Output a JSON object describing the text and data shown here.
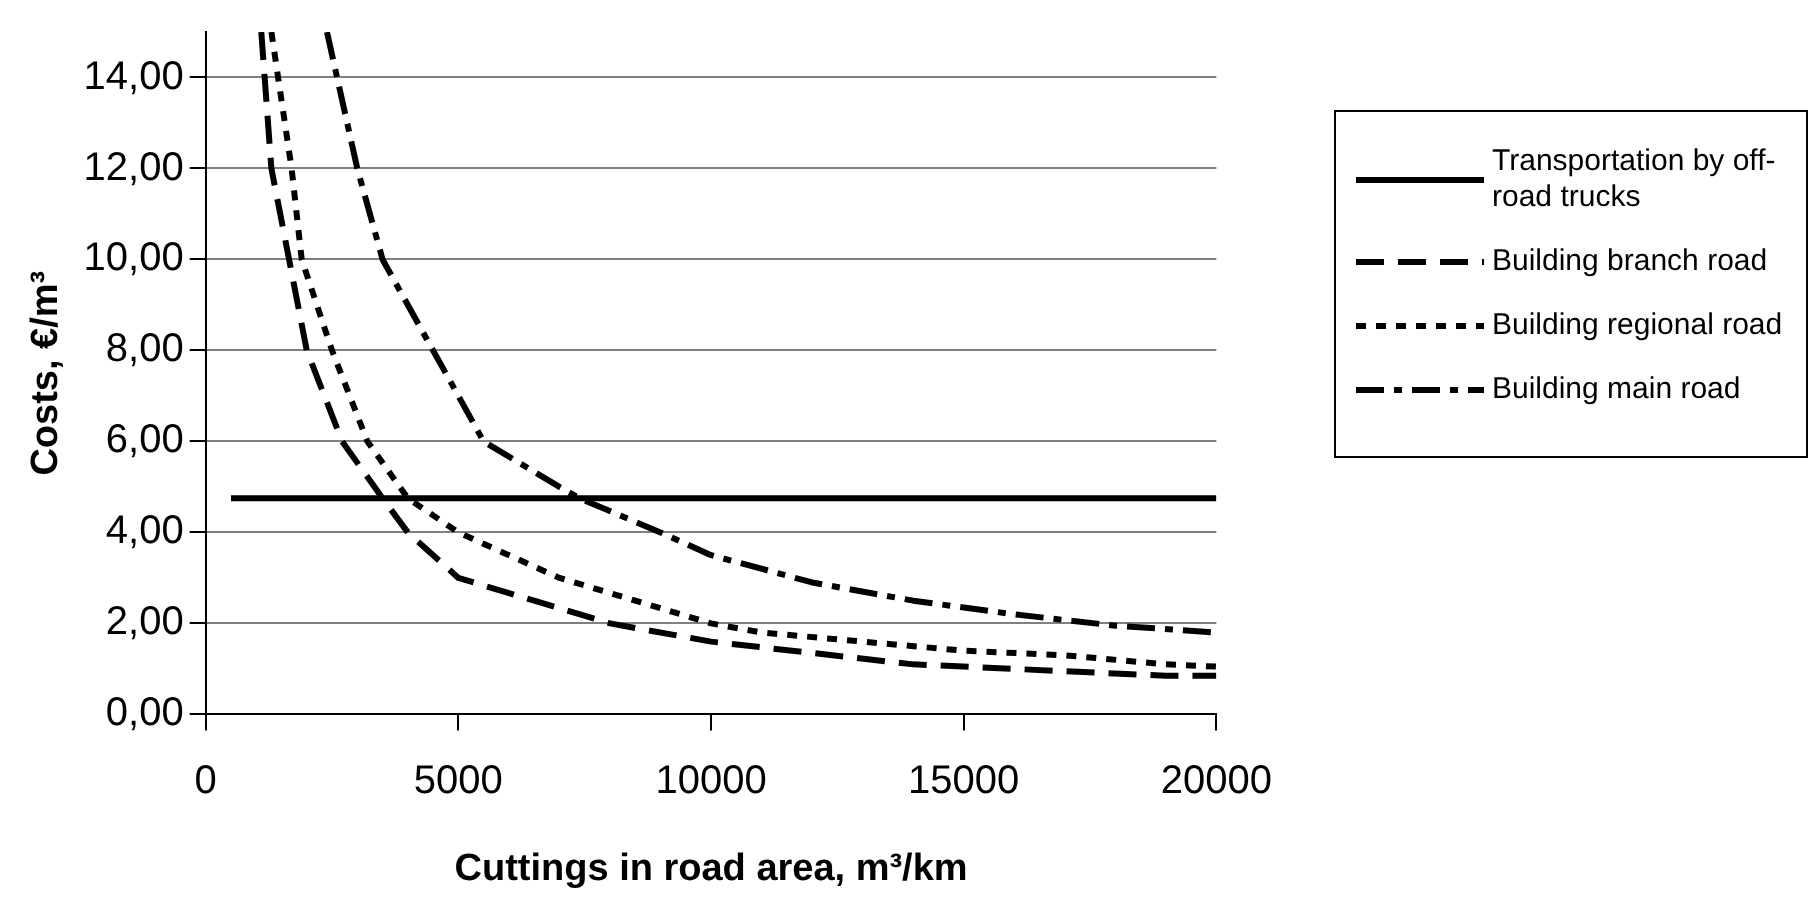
{
  "chart_data": {
    "type": "line",
    "xlabel": "Cuttings in road area, m³/km",
    "ylabel": "Costs, €/m³",
    "xlim": [
      0,
      20000
    ],
    "xticks": [
      0,
      5000,
      10000,
      15000,
      20000
    ],
    "ylim": [
      0,
      15
    ],
    "yticks": [
      {
        "value": 0,
        "label": "0,00"
      },
      {
        "value": 2,
        "label": "2,00"
      },
      {
        "value": 4,
        "label": "4,00"
      },
      {
        "value": 6,
        "label": "6,00"
      },
      {
        "value": 8,
        "label": "8,00"
      },
      {
        "value": 10,
        "label": "10,00"
      },
      {
        "value": 12,
        "label": "12,00"
      },
      {
        "value": 14,
        "label": "14,00"
      }
    ],
    "grid": "y",
    "legend": "right",
    "marker": "none",
    "series": [
      {
        "name": "Transportation by off-road trucks",
        "color": "#000000",
        "line_style": "solid",
        "x": [
          500,
          20000
        ],
        "values": [
          4.75,
          4.75
        ]
      },
      {
        "name": "Building branch road",
        "color": "#000000",
        "line_style": "dashed",
        "x": [
          1100,
          1300,
          1650,
          2000,
          2700,
          3500,
          4000,
          5000,
          6500,
          8000,
          10000,
          12000,
          14000,
          16000,
          17000,
          19000,
          20000
        ],
        "values": [
          15,
          12,
          10,
          8,
          6,
          4.75,
          4,
          3,
          2.5,
          2,
          1.6,
          1.35,
          1.1,
          1,
          0.95,
          0.85,
          0.85
        ]
      },
      {
        "name": "Building regional road",
        "color": "#000000",
        "line_style": "dotted",
        "x": [
          1300,
          1700,
          1900,
          2500,
          3200,
          4000,
          5000,
          7000,
          8500,
          10000,
          11000,
          13000,
          15000,
          17000,
          19000,
          20000
        ],
        "values": [
          15,
          12,
          10,
          8,
          6,
          4.75,
          4,
          3,
          2.5,
          2,
          1.8,
          1.6,
          1.4,
          1.3,
          1.1,
          1.05
        ]
      },
      {
        "name": "Building main road",
        "color": "#000000",
        "line_style": "dashdot",
        "x": [
          2400,
          3000,
          3500,
          4500,
          5500,
          7000,
          7400,
          9000,
          10000,
          12000,
          14000,
          16000,
          18000,
          20000
        ],
        "values": [
          15,
          12,
          10,
          8,
          6,
          5,
          4.75,
          4,
          3.5,
          2.9,
          2.5,
          2.2,
          1.95,
          1.8
        ]
      }
    ]
  }
}
